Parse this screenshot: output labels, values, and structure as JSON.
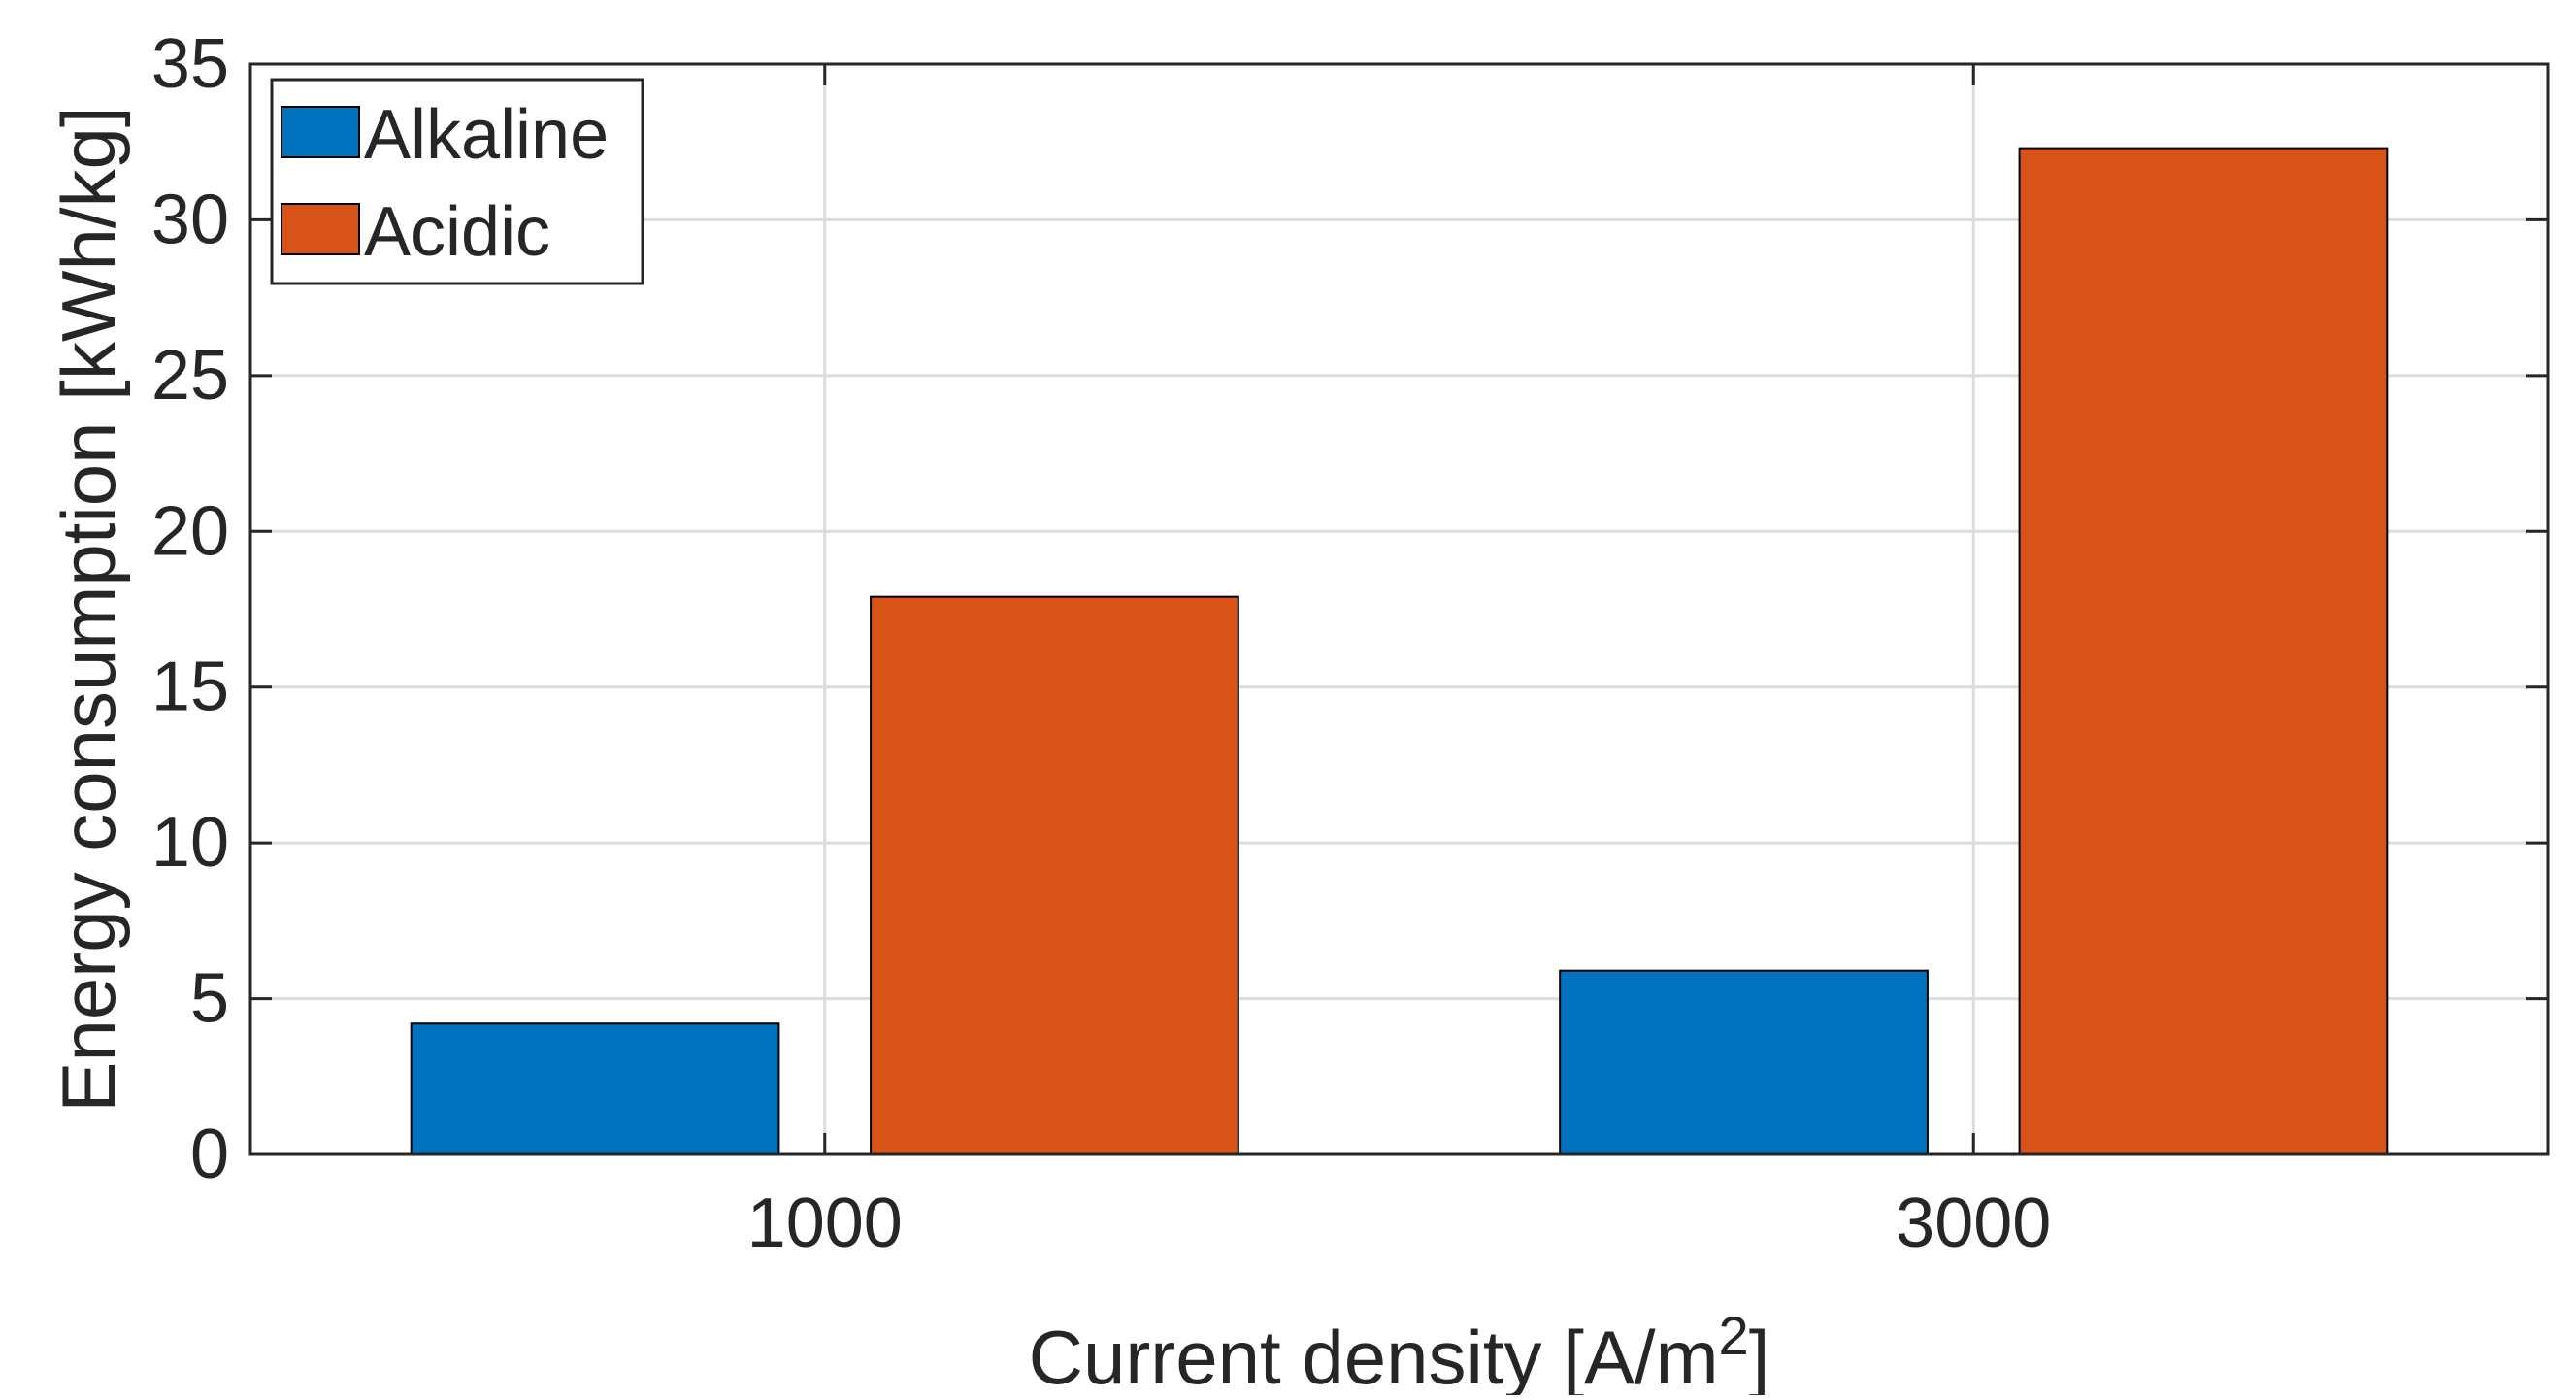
{
  "chart_data": {
    "type": "bar",
    "title": "",
    "categories": [
      "1000",
      "3000"
    ],
    "series": [
      {
        "name": "Alkaline",
        "values": [
          4.2,
          5.9
        ],
        "color": "#0072BD"
      },
      {
        "name": "Acidic",
        "values": [
          17.9,
          32.3
        ],
        "color": "#D95319"
      }
    ],
    "xlabel": "Current density [A/m",
    "xlabel_superscript": "2",
    "xlabel_suffix": "]",
    "ylabel": "Energy consumption [kWh/kg]",
    "ylim": [
      0,
      35
    ],
    "yticks": [
      0,
      5,
      10,
      15,
      20,
      25,
      30,
      35
    ],
    "grid": true,
    "legend_position": "top-left"
  }
}
